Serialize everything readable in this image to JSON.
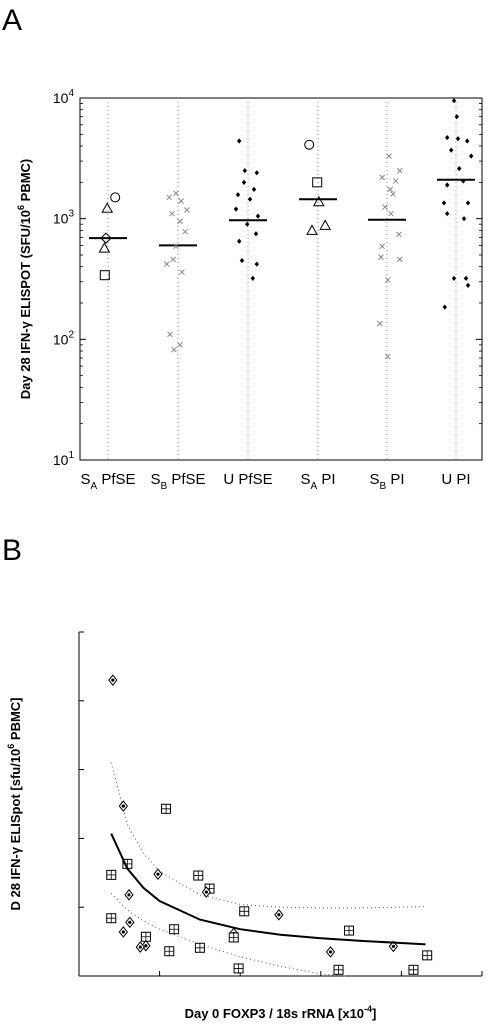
{
  "panels": [
    {
      "label": "A"
    },
    {
      "label": "B"
    }
  ],
  "chart_data": [
    {
      "type": "scatter",
      "panel": "A",
      "ylabel": "Day 28 IFN-γ ELISPOT (SFU/10^6 PBMC)",
      "y_scale": "log",
      "ylim": [
        10,
        10000
      ],
      "y_ticks": [
        {
          "base": "10",
          "exp": "1"
        },
        {
          "base": "10",
          "exp": "2"
        },
        {
          "base": "10",
          "exp": "3"
        },
        {
          "base": "10",
          "exp": "4"
        }
      ],
      "categories": [
        {
          "main": "S",
          "sub": "A",
          "rest": " PfSE"
        },
        {
          "main": "S",
          "sub": "B",
          "rest": " PfSE"
        },
        {
          "main": "U",
          "sub": "",
          "rest": " PfSE"
        },
        {
          "main": "S",
          "sub": "A",
          "rest": " PI"
        },
        {
          "main": "S",
          "sub": "B",
          "rest": " PI"
        },
        {
          "main": "U",
          "sub": "",
          "rest": " PI"
        }
      ],
      "grid": "vertical dotted",
      "groups": [
        {
          "median": 690,
          "points": [
            {
              "dx": 0.18,
              "y": 1500,
              "marker": "circle"
            },
            {
              "dx": -0.02,
              "y": 1220,
              "marker": "triangle"
            },
            {
              "dx": -0.05,
              "y": 690,
              "marker": "diamond"
            },
            {
              "dx": -0.09,
              "y": 570,
              "marker": "triangle"
            },
            {
              "dx": -0.08,
              "y": 340,
              "marker": "square"
            }
          ]
        },
        {
          "median": 600,
          "points": [
            {
              "dx": -0.22,
              "y": 1500,
              "marker": "x"
            },
            {
              "dx": -0.05,
              "y": 1620,
              "marker": "x"
            },
            {
              "dx": 0.08,
              "y": 1400,
              "marker": "x"
            },
            {
              "dx": -0.15,
              "y": 1100,
              "marker": "x"
            },
            {
              "dx": 0.22,
              "y": 1180,
              "marker": "x"
            },
            {
              "dx": 0.05,
              "y": 950,
              "marker": "x"
            },
            {
              "dx": 0.18,
              "y": 780,
              "marker": "x"
            },
            {
              "dx": -0.05,
              "y": 590,
              "marker": "x"
            },
            {
              "dx": -0.28,
              "y": 420,
              "marker": "x"
            },
            {
              "dx": -0.12,
              "y": 460,
              "marker": "x"
            },
            {
              "dx": 0.1,
              "y": 360,
              "marker": "x"
            },
            {
              "dx": -0.2,
              "y": 110,
              "marker": "x"
            },
            {
              "dx": 0.05,
              "y": 90,
              "marker": "x"
            },
            {
              "dx": -0.1,
              "y": 82,
              "marker": "x"
            }
          ]
        },
        {
          "median": 970,
          "points": [
            {
              "dx": -0.22,
              "y": 4400,
              "marker": "dot"
            },
            {
              "dx": -0.08,
              "y": 2500,
              "marker": "dot"
            },
            {
              "dx": 0.22,
              "y": 2400,
              "marker": "dot"
            },
            {
              "dx": -0.1,
              "y": 2000,
              "marker": "dot"
            },
            {
              "dx": 0.15,
              "y": 1750,
              "marker": "dot"
            },
            {
              "dx": -0.25,
              "y": 1580,
              "marker": "dot"
            },
            {
              "dx": 0.05,
              "y": 1450,
              "marker": "dot"
            },
            {
              "dx": -0.3,
              "y": 1200,
              "marker": "dot"
            },
            {
              "dx": 0.25,
              "y": 1050,
              "marker": "dot"
            },
            {
              "dx": -0.02,
              "y": 900,
              "marker": "dot"
            },
            {
              "dx": 0.2,
              "y": 750,
              "marker": "dot"
            },
            {
              "dx": -0.22,
              "y": 650,
              "marker": "dot"
            },
            {
              "dx": -0.15,
              "y": 450,
              "marker": "dot"
            },
            {
              "dx": 0.22,
              "y": 420,
              "marker": "dot"
            },
            {
              "dx": 0.12,
              "y": 320,
              "marker": "dot"
            }
          ]
        },
        {
          "median": 1450,
          "points": [
            {
              "dx": -0.22,
              "y": 4100,
              "marker": "circle"
            },
            {
              "dx": -0.02,
              "y": 2000,
              "marker": "square"
            },
            {
              "dx": 0.02,
              "y": 1380,
              "marker": "triangle"
            },
            {
              "dx": 0.18,
              "y": 880,
              "marker": "triangle"
            },
            {
              "dx": -0.15,
              "y": 800,
              "marker": "triangle"
            }
          ]
        },
        {
          "median": 980,
          "points": [
            {
              "dx": 0.05,
              "y": 3300,
              "marker": "x"
            },
            {
              "dx": 0.32,
              "y": 2500,
              "marker": "x"
            },
            {
              "dx": -0.12,
              "y": 2200,
              "marker": "x"
            },
            {
              "dx": 0.22,
              "y": 2050,
              "marker": "x"
            },
            {
              "dx": 0.08,
              "y": 1750,
              "marker": "x"
            },
            {
              "dx": 0.15,
              "y": 1600,
              "marker": "x"
            },
            {
              "dx": -0.05,
              "y": 1250,
              "marker": "x"
            },
            {
              "dx": 0.1,
              "y": 1100,
              "marker": "x"
            },
            {
              "dx": 0.3,
              "y": 740,
              "marker": "x"
            },
            {
              "dx": -0.12,
              "y": 590,
              "marker": "x"
            },
            {
              "dx": -0.15,
              "y": 480,
              "marker": "x"
            },
            {
              "dx": 0.32,
              "y": 460,
              "marker": "x"
            },
            {
              "dx": 0.02,
              "y": 310,
              "marker": "x"
            },
            {
              "dx": -0.18,
              "y": 135,
              "marker": "x"
            },
            {
              "dx": 0.02,
              "y": 72,
              "marker": "x"
            }
          ]
        },
        {
          "median": 2100,
          "points": [
            {
              "dx": -0.05,
              "y": 9500,
              "marker": "dot"
            },
            {
              "dx": 0.02,
              "y": 7000,
              "marker": "dot"
            },
            {
              "dx": -0.22,
              "y": 4700,
              "marker": "dot"
            },
            {
              "dx": 0.05,
              "y": 4600,
              "marker": "dot"
            },
            {
              "dx": 0.28,
              "y": 4400,
              "marker": "dot"
            },
            {
              "dx": -0.12,
              "y": 3700,
              "marker": "dot"
            },
            {
              "dx": 0.38,
              "y": 3300,
              "marker": "dot"
            },
            {
              "dx": 0.08,
              "y": 2600,
              "marker": "dot"
            },
            {
              "dx": 0.18,
              "y": 2050,
              "marker": "dot"
            },
            {
              "dx": -0.22,
              "y": 1900,
              "marker": "dot"
            },
            {
              "dx": -0.3,
              "y": 1350,
              "marker": "dot"
            },
            {
              "dx": 0.3,
              "y": 1350,
              "marker": "dot"
            },
            {
              "dx": -0.22,
              "y": 1100,
              "marker": "dot"
            },
            {
              "dx": 0.2,
              "y": 1000,
              "marker": "dot"
            },
            {
              "dx": -0.05,
              "y": 320,
              "marker": "dot"
            },
            {
              "dx": 0.25,
              "y": 320,
              "marker": "dot"
            },
            {
              "dx": 0.3,
              "y": 280,
              "marker": "dot"
            },
            {
              "dx": -0.28,
              "y": 185,
              "marker": "dot"
            }
          ]
        }
      ]
    },
    {
      "type": "scatter",
      "panel": "B",
      "xlabel": "Day 0 FOXP3 / 18s rRNA [x10^-4]",
      "ylabel": "D 28 IFN-γ ELISpot [sfu/10^6 PBMC]",
      "xlim": [
        0,
        5
      ],
      "ylim": [
        0,
        5000
      ],
      "x_ticks": [
        "0",
        "1",
        "2",
        "3",
        "4",
        "5"
      ],
      "y_ticks": [
        "0",
        "1000",
        "2000",
        "3000",
        "4000",
        "5000"
      ],
      "points": [
        {
          "x": 0.42,
          "y": 4300,
          "marker": "diamond"
        },
        {
          "x": 0.55,
          "y": 2470,
          "marker": "diamond"
        },
        {
          "x": 1.08,
          "y": 2430,
          "marker": "square"
        },
        {
          "x": 0.6,
          "y": 1630,
          "marker": "square"
        },
        {
          "x": 0.4,
          "y": 1470,
          "marker": "square"
        },
        {
          "x": 0.98,
          "y": 1480,
          "marker": "diamond"
        },
        {
          "x": 1.48,
          "y": 1460,
          "marker": "square"
        },
        {
          "x": 1.62,
          "y": 1270,
          "marker": "square"
        },
        {
          "x": 1.58,
          "y": 1220,
          "marker": "diamond"
        },
        {
          "x": 0.62,
          "y": 1180,
          "marker": "diamond"
        },
        {
          "x": 2.05,
          "y": 940,
          "marker": "square"
        },
        {
          "x": 2.48,
          "y": 890,
          "marker": "diamond"
        },
        {
          "x": 0.4,
          "y": 840,
          "marker": "square"
        },
        {
          "x": 0.63,
          "y": 780,
          "marker": "diamond"
        },
        {
          "x": 1.18,
          "y": 680,
          "marker": "square"
        },
        {
          "x": 3.35,
          "y": 660,
          "marker": "square"
        },
        {
          "x": 1.92,
          "y": 620,
          "marker": "diamond"
        },
        {
          "x": 0.55,
          "y": 640,
          "marker": "diamond"
        },
        {
          "x": 1.92,
          "y": 560,
          "marker": "square"
        },
        {
          "x": 0.83,
          "y": 570,
          "marker": "square"
        },
        {
          "x": 0.83,
          "y": 440,
          "marker": "diamond"
        },
        {
          "x": 0.76,
          "y": 420,
          "marker": "diamond"
        },
        {
          "x": 1.5,
          "y": 410,
          "marker": "square"
        },
        {
          "x": 3.9,
          "y": 430,
          "marker": "diamond"
        },
        {
          "x": 1.12,
          "y": 360,
          "marker": "square"
        },
        {
          "x": 3.12,
          "y": 350,
          "marker": "diamond"
        },
        {
          "x": 4.32,
          "y": 300,
          "marker": "square"
        },
        {
          "x": 1.98,
          "y": 110,
          "marker": "square"
        },
        {
          "x": 3.22,
          "y": 90,
          "marker": "square"
        },
        {
          "x": 4.15,
          "y": 90,
          "marker": "square"
        }
      ],
      "fit": {
        "type": "curve",
        "x": [
          0.4,
          0.6,
          0.8,
          1.0,
          1.5,
          2.0,
          2.5,
          3.0,
          3.5,
          4.0,
          4.3
        ],
        "y": [
          2070,
          1560,
          1280,
          1090,
          820,
          680,
          600,
          550,
          510,
          480,
          460
        ]
      },
      "ci_upper": {
        "x": [
          0.4,
          0.6,
          0.8,
          1.0,
          1.5,
          2.0,
          2.5,
          3.0,
          3.5,
          4.0,
          4.3
        ],
        "y": [
          3100,
          2200,
          1780,
          1520,
          1180,
          1040,
          1000,
          990,
          990,
          1000,
          1010
        ]
      },
      "ci_lower": {
        "x": [
          0.4,
          0.6,
          0.8,
          1.0,
          1.5,
          2.0,
          2.5,
          3.0,
          3.3
        ],
        "y": [
          1200,
          960,
          800,
          680,
          460,
          280,
          140,
          30,
          0
        ]
      }
    }
  ]
}
